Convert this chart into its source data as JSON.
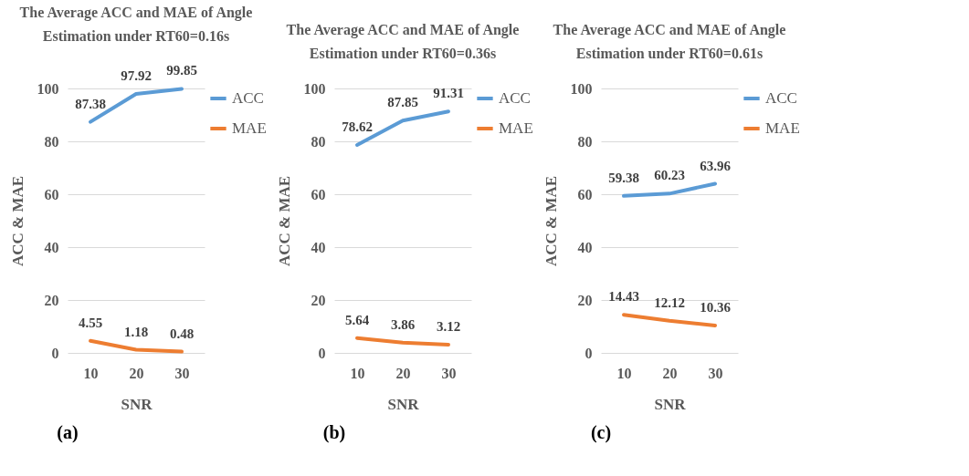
{
  "chart_data": [
    {
      "type": "line",
      "title": "The Average ACC and MAE of Angle Estimation under RT60=0.16s",
      "xlabel": "SNR",
      "ylabel": "ACC & MAE",
      "categories": [
        "10",
        "20",
        "30"
      ],
      "ylim": [
        0,
        100
      ],
      "yticks": [
        0,
        20,
        40,
        60,
        80,
        100
      ],
      "grid": "y",
      "legend": "right",
      "data_labels": true,
      "annotations": [
        "(a)"
      ],
      "series": [
        {
          "name": "ACC",
          "color": "#5b9bd5",
          "values": [
            87.38,
            97.92,
            99.85
          ]
        },
        {
          "name": "MAE",
          "color": "#ed7d31",
          "values": [
            4.55,
            1.18,
            0.48
          ]
        }
      ]
    },
    {
      "type": "line",
      "title": "The Average ACC and MAE of Angle Estimation under RT60=0.36s",
      "xlabel": "SNR",
      "ylabel": "ACC & MAE",
      "categories": [
        "10",
        "20",
        "30"
      ],
      "ylim": [
        0,
        100
      ],
      "yticks": [
        0,
        20,
        40,
        60,
        80,
        100
      ],
      "grid": "y",
      "legend": "right",
      "data_labels": true,
      "annotations": [
        "(b)"
      ],
      "series": [
        {
          "name": "ACC",
          "color": "#5b9bd5",
          "values": [
            78.62,
            87.85,
            91.31
          ]
        },
        {
          "name": "MAE",
          "color": "#ed7d31",
          "values": [
            5.64,
            3.86,
            3.12
          ]
        }
      ]
    },
    {
      "type": "line",
      "title": "The Average ACC and MAE of Angle Estimation under RT60=0.61s",
      "xlabel": "SNR",
      "ylabel": "ACC & MAE",
      "categories": [
        "10",
        "20",
        "30"
      ],
      "ylim": [
        0,
        100
      ],
      "yticks": [
        0,
        20,
        40,
        60,
        80,
        100
      ],
      "grid": "y",
      "legend": "right",
      "data_labels": true,
      "annotations": [
        "(c)"
      ],
      "series": [
        {
          "name": "ACC",
          "color": "#5b9bd5",
          "values": [
            59.38,
            60.23,
            63.96
          ]
        },
        {
          "name": "MAE",
          "color": "#ed7d31",
          "values": [
            14.43,
            12.12,
            10.36
          ]
        }
      ]
    }
  ]
}
